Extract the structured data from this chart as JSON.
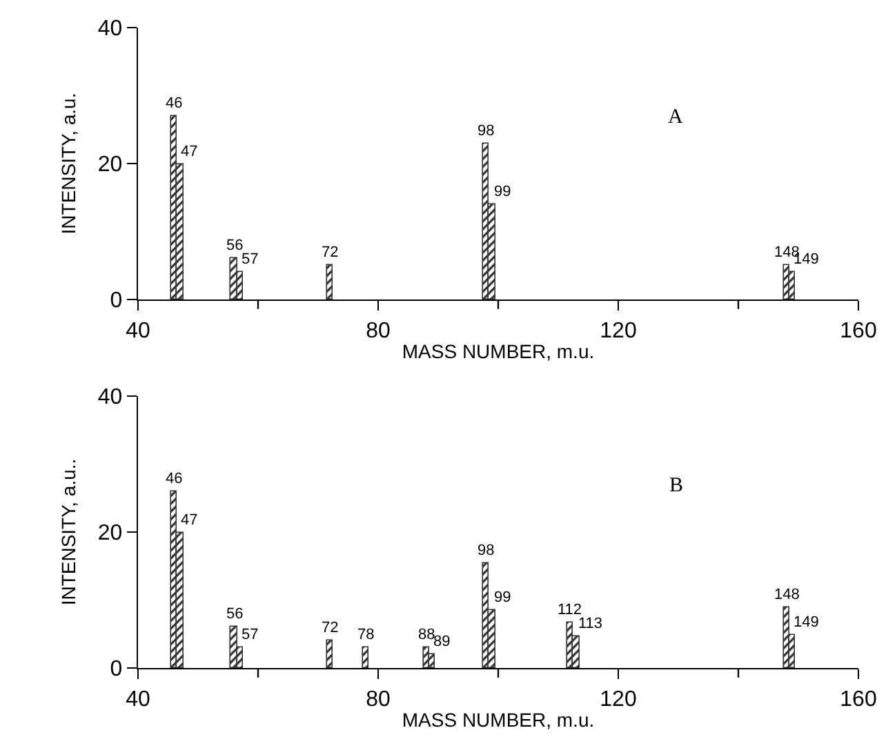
{
  "chart_data": [
    {
      "type": "bar",
      "xlabel": "MASS NUMBER, m.u.",
      "ylabel": "INTENSITY, a.u.",
      "annotations": [
        "A",
        {
          "text": "46",
          "x": 46,
          "y": 27
        },
        {
          "text": "47",
          "x": 47,
          "y": 20
        },
        {
          "text": "56",
          "x": 56,
          "y": 6
        },
        {
          "text": "57",
          "x": 57,
          "y": 4
        },
        {
          "text": "72",
          "x": 72,
          "y": 5
        },
        {
          "text": "98",
          "x": 98,
          "y": 23
        },
        {
          "text": "99",
          "x": 99,
          "y": 14
        },
        {
          "text": "148",
          "x": 148,
          "y": 5
        },
        {
          "text": "149",
          "x": 149,
          "y": 4
        }
      ],
      "x": [
        46,
        47,
        56,
        57,
        72,
        98,
        99,
        148,
        149
      ],
      "values": [
        27,
        20,
        6,
        4,
        5,
        23,
        14,
        5,
        4
      ],
      "color": "#333333",
      "xlim": [
        40,
        160
      ],
      "xticks": [
        40,
        {
          "value": 60,
          "label": null
        },
        80,
        {
          "value": 100,
          "label": null
        },
        120,
        {
          "value": 140,
          "label": null
        },
        160
      ],
      "ylim": [
        0,
        40
      ],
      "yticks": [
        0,
        20,
        40
      ],
      "grid": false,
      "legend": false
    },
    {
      "type": "bar",
      "xlabel": "MASS NUMBER, m.u.",
      "ylabel": "INTENSITY, a.u..",
      "annotations": [
        "B",
        {
          "text": "46",
          "x": 46,
          "y": 26
        },
        {
          "text": "47",
          "x": 47,
          "y": 20
        },
        {
          "text": "56",
          "x": 56,
          "y": 6
        },
        {
          "text": "57",
          "x": 57,
          "y": 3
        },
        {
          "text": "72",
          "x": 72,
          "y": 4
        },
        {
          "text": "78",
          "x": 78,
          "y": 3
        },
        {
          "text": "88",
          "x": 88,
          "y": 3
        },
        {
          "text": "89",
          "x": 89,
          "y": 2
        },
        {
          "text": "98",
          "x": 98,
          "y": 15.5
        },
        {
          "text": "99",
          "x": 99,
          "y": 8.6
        },
        {
          "text": "112",
          "x": 112,
          "y": 6.7
        },
        {
          "text": "113",
          "x": 113,
          "y": 4.7
        },
        {
          "text": "148",
          "x": 148,
          "y": 8.9
        },
        {
          "text": "149",
          "x": 149,
          "y": 4.9
        }
      ],
      "x": [
        46,
        47,
        56,
        57,
        72,
        78,
        88,
        89,
        98,
        99,
        112,
        113,
        148,
        149
      ],
      "values": [
        26,
        20,
        6,
        3,
        4,
        3,
        3,
        2,
        15.5,
        8.6,
        6.7,
        4.7,
        8.9,
        4.9
      ],
      "color": "#333333",
      "xlim": [
        40,
        160
      ],
      "xticks": [
        40,
        {
          "value": 60,
          "label": null
        },
        80,
        {
          "value": 100,
          "label": null
        },
        120,
        {
          "value": 140,
          "label": null
        },
        160
      ],
      "ylim": [
        0,
        40
      ],
      "yticks": [
        0,
        20,
        40
      ],
      "grid": false,
      "legend": false
    }
  ]
}
